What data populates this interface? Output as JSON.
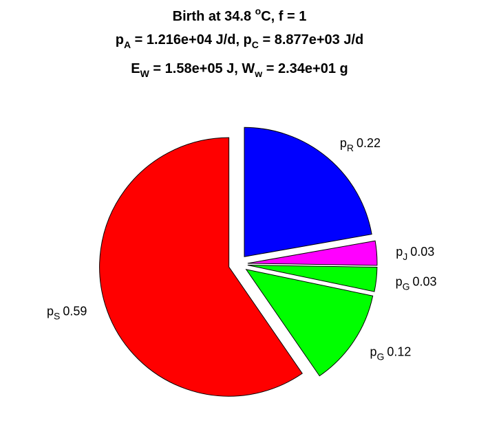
{
  "chart_data": {
    "type": "pie",
    "title_lines": [
      [
        {
          "t": "Birth at 34.8 "
        },
        {
          "t": "o",
          "s": "sup"
        },
        {
          "t": "C, f = 1"
        }
      ],
      [
        {
          "t": "p"
        },
        {
          "t": "A",
          "s": "sub"
        },
        {
          "t": " = 1.216e+04 J/d, p"
        },
        {
          "t": "C",
          "s": "sub"
        },
        {
          "t": " = 8.877e+03 J/d"
        }
      ],
      [
        {
          "t": "E"
        },
        {
          "t": "W",
          "s": "sub"
        },
        {
          "t": " = 1.58e+05 J, W"
        },
        {
          "t": "w",
          "s": "sub"
        },
        {
          "t": " = 2.34e+01 g"
        }
      ]
    ],
    "slices": [
      {
        "name": "p",
        "sub": "R",
        "value": 0.22,
        "value_label": "0.22",
        "color": "#0000ff"
      },
      {
        "name": "p",
        "sub": "J",
        "value": 0.03,
        "value_label": "0.03",
        "color": "#ff00ff"
      },
      {
        "name": "p",
        "sub": "G",
        "value": 0.03,
        "value_label": "0.03",
        "color": "#00ff00"
      },
      {
        "name": "p",
        "sub": "G",
        "value": 0.12,
        "value_label": "0.12",
        "color": "#00ff00"
      },
      {
        "name": "p",
        "sub": "S",
        "value": 0.59,
        "value_label": "0.59",
        "color": "#ff0000"
      }
    ],
    "start_angle_deg": 0,
    "direction": "clockwise",
    "exploded": true
  }
}
